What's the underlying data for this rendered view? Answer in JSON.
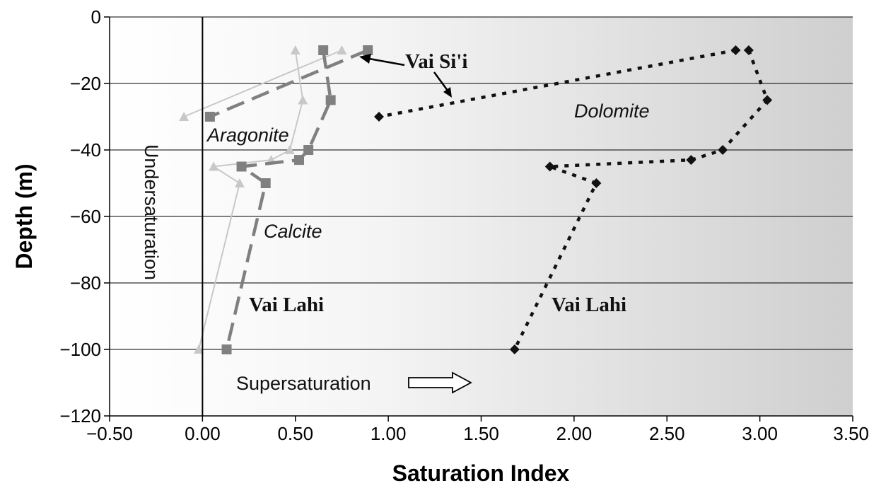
{
  "chart_data": {
    "type": "line",
    "xlabel": "Saturation Index",
    "ylabel": "Depth (m)",
    "xlim": [
      -0.5,
      3.5
    ],
    "ylim": [
      -120,
      0
    ],
    "x_ticks": [
      "−0.50",
      "0.00",
      "0.50",
      "1.00",
      "1.50",
      "2.00",
      "2.50",
      "3.00",
      "3.50"
    ],
    "y_ticks": [
      "0",
      "−20",
      "−40",
      "−60",
      "−80",
      "−100",
      "−120"
    ],
    "grid": "horizontal",
    "background": "gradient white to gray (left to right)",
    "series": [
      {
        "name": "Aragonite",
        "mineral": "Aragonite",
        "marker": "triangle",
        "color": "#c8c8c8",
        "style": "solid",
        "vai_sii": [
          {
            "x": 0.75,
            "y": -10
          },
          {
            "x": -0.1,
            "y": -30
          }
        ],
        "vai_lahi": [
          {
            "x": 0.5,
            "y": -10
          },
          {
            "x": 0.54,
            "y": -25
          },
          {
            "x": 0.47,
            "y": -40
          },
          {
            "x": 0.37,
            "y": -43
          },
          {
            "x": 0.06,
            "y": -45
          },
          {
            "x": 0.2,
            "y": -50
          },
          {
            "x": -0.02,
            "y": -100
          }
        ]
      },
      {
        "name": "Calcite",
        "mineral": "Calcite",
        "marker": "square",
        "color": "#808080",
        "style": "long-dash",
        "vai_sii": [
          {
            "x": 0.89,
            "y": -10
          },
          {
            "x": 0.04,
            "y": -30
          }
        ],
        "vai_lahi": [
          {
            "x": 0.65,
            "y": -10
          },
          {
            "x": 0.69,
            "y": -25
          },
          {
            "x": 0.57,
            "y": -40
          },
          {
            "x": 0.52,
            "y": -43
          },
          {
            "x": 0.21,
            "y": -45
          },
          {
            "x": 0.34,
            "y": -50
          },
          {
            "x": 0.13,
            "y": -100
          }
        ]
      },
      {
        "name": "Dolomite",
        "mineral": "Dolomite",
        "marker": "diamond",
        "color": "#111111",
        "style": "dotted",
        "vai_sii": [
          {
            "x": 2.87,
            "y": -10
          },
          {
            "x": 0.95,
            "y": -30
          }
        ],
        "vai_lahi": [
          {
            "x": 2.94,
            "y": -10
          },
          {
            "x": 3.04,
            "y": -25
          },
          {
            "x": 2.8,
            "y": -40
          },
          {
            "x": 2.63,
            "y": -43
          },
          {
            "x": 1.87,
            "y": -45
          },
          {
            "x": 2.12,
            "y": -50
          },
          {
            "x": 1.68,
            "y": -100
          }
        ]
      }
    ],
    "annotations": {
      "aragonite": "Aragonite",
      "calcite": "Calcite",
      "dolomite": "Dolomite",
      "vai_sii": "Vai Si'i",
      "vai_lahi_left": "Vai Lahi",
      "vai_lahi_right": "Vai Lahi",
      "undersaturation": "Undersaturation",
      "supersaturation": "Supersaturation"
    }
  }
}
